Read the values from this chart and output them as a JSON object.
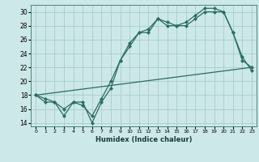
{
  "title": "",
  "xlabel": "Humidex (Indice chaleur)",
  "ylabel": "",
  "bg_color": "#cce8e8",
  "grid_color": "#aacccc",
  "line_color": "#2a6e5e",
  "xlim": [
    -0.5,
    23.5
  ],
  "ylim": [
    13.5,
    31.0
  ],
  "xticks": [
    0,
    1,
    2,
    3,
    4,
    5,
    6,
    7,
    8,
    9,
    10,
    11,
    12,
    13,
    14,
    15,
    16,
    17,
    18,
    19,
    20,
    21,
    22,
    23
  ],
  "yticks": [
    14,
    16,
    18,
    20,
    22,
    24,
    26,
    28,
    30
  ],
  "line1_x": [
    0,
    1,
    2,
    3,
    4,
    5,
    6,
    7,
    8,
    9,
    10,
    11,
    12,
    13,
    14,
    15,
    16,
    17,
    18,
    19,
    20,
    21,
    22,
    23
  ],
  "line1_y": [
    18,
    17,
    17,
    15,
    17,
    17,
    14,
    17,
    19,
    23,
    25,
    27,
    27,
    29,
    28,
    28,
    28,
    29,
    30,
    30,
    30,
    27,
    23,
    22
  ],
  "line2_x": [
    0,
    1,
    2,
    3,
    4,
    5,
    6,
    7,
    8,
    9,
    10,
    11,
    12,
    13,
    14,
    15,
    16,
    17,
    18,
    19,
    20,
    21,
    22,
    23
  ],
  "line2_y": [
    18,
    17.5,
    17,
    16,
    17,
    16.5,
    15,
    17.5,
    20,
    23,
    25.5,
    27,
    27.5,
    29,
    28.5,
    28,
    28.5,
    29.5,
    30.5,
    30.5,
    30,
    27,
    23.5,
    21.5
  ],
  "line3_x": [
    0,
    23
  ],
  "line3_y": [
    18,
    22
  ]
}
